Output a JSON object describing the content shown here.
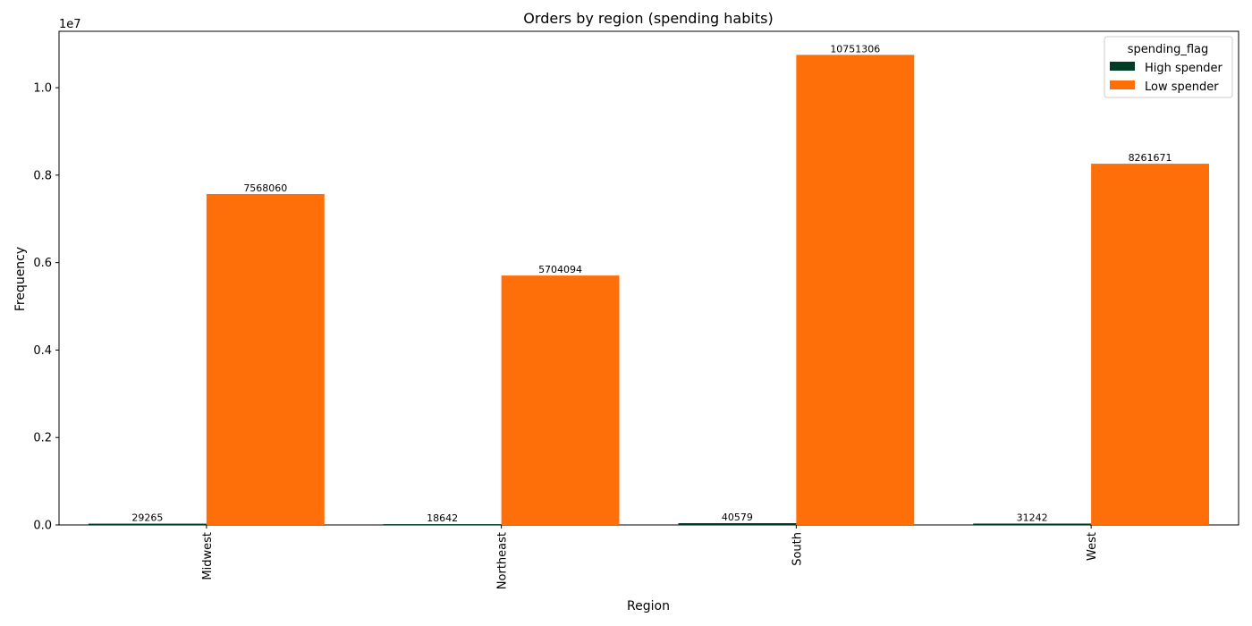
{
  "chart_data": {
    "type": "bar",
    "title": "Orders by region (spending habits)",
    "xlabel": "Region",
    "ylabel": "Frequency",
    "y_offset_label": "1e7",
    "categories": [
      "Midwest",
      "Northeast",
      "South",
      "West"
    ],
    "series": [
      {
        "name": "High spender",
        "color": "#003d26",
        "values": [
          29265,
          18642,
          40579,
          31242
        ]
      },
      {
        "name": "Low spender",
        "color": "#ff6f09",
        "values": [
          7568060,
          5704094,
          10751306,
          8261671
        ]
      }
    ],
    "value_labels": [
      [
        "29265",
        "18642",
        "40579",
        "31242"
      ],
      [
        "7568060",
        "5704094",
        "10751306",
        "8261671"
      ]
    ],
    "ylim": [
      0,
      11290000
    ],
    "yticks": [
      0,
      2000000,
      4000000,
      6000000,
      8000000,
      10000000
    ],
    "ytick_labels": [
      "0.0",
      "0.2",
      "0.4",
      "0.6",
      "0.8",
      "1.0"
    ],
    "legend": {
      "title": "spending_flag",
      "placement": "top-right"
    },
    "grid": false
  }
}
